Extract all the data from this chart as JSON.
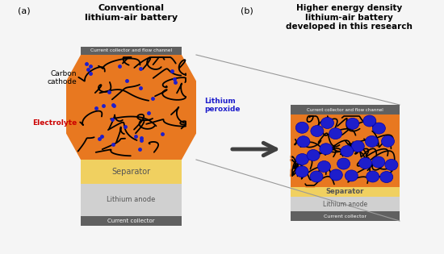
{
  "bg_color": "#f5f5f5",
  "title_a": "Conventional\nlithium-air battery",
  "title_b": "Higher energy density\nlithium-air battery\ndeveloped in this research",
  "label_a": "(a)",
  "label_b": "(b)",
  "carbon_cathode": "Carbon\ncathode",
  "electrolyte": "Electrolyte",
  "lithium_peroxide": "Lithium\nperoxide",
  "separator": "Separator",
  "lithium_anode": "Lithium anode",
  "current_collector": "Current collector",
  "current_collector_flow": "Current collector and flow channel",
  "orange": "#E87820",
  "yellow": "#F0D060",
  "light_gray": "#D0D0D0",
  "dark_gray": "#606060",
  "blue": "#1E1ECC",
  "white": "#FFFFFF",
  "black": "#000000",
  "red": "#CC0000",
  "arrow_color": "#404040",
  "line_color": "#999999"
}
